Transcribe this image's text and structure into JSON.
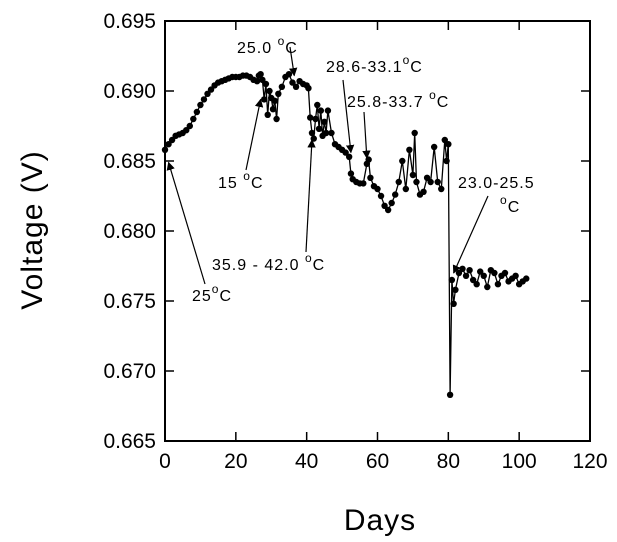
{
  "chart_data": {
    "type": "scatter",
    "title": "",
    "xlabel": "Days",
    "ylabel": "Voltage (V)",
    "xlim": [
      0,
      120
    ],
    "ylim": [
      0.665,
      0.695
    ],
    "x_ticks": [
      0,
      20,
      40,
      60,
      80,
      100,
      120
    ],
    "x_tick_labels": [
      "0",
      "20",
      "40",
      "60",
      "80",
      "100",
      "120"
    ],
    "y_ticks": [
      0.665,
      0.67,
      0.675,
      0.68,
      0.685,
      0.69,
      0.695
    ],
    "y_tick_labels": [
      "0.665",
      "0.670",
      "0.675",
      "0.680",
      "0.685",
      "0.690",
      "0.695"
    ],
    "grid": false,
    "connected": true,
    "marker": "filled-circle",
    "color": "#000000",
    "series": [
      {
        "x": [
          0,
          1,
          2,
          3,
          4,
          5,
          6,
          7,
          8,
          9,
          10,
          11,
          12,
          13,
          14,
          15,
          16,
          17,
          18,
          19,
          20,
          21,
          22,
          23,
          24,
          25,
          26,
          26.5,
          27,
          27.5,
          28,
          28.5,
          29,
          29.5,
          30,
          30.5,
          31,
          31.5,
          32,
          33,
          34,
          35,
          36,
          37,
          38,
          39,
          40,
          40.5,
          41,
          41.5,
          42,
          42.5,
          43,
          43.5,
          44,
          44.5,
          45,
          45.5,
          46,
          47,
          48,
          49,
          50,
          51,
          52,
          52.5,
          53,
          54,
          55,
          56,
          57,
          57.5,
          58,
          59,
          60,
          61,
          62,
          63,
          64,
          65,
          66,
          67,
          68,
          69,
          70,
          70.5,
          71,
          72,
          73,
          74,
          75,
          76,
          77,
          78,
          79,
          79.5,
          80,
          80.5,
          81,
          81.5,
          82,
          83,
          84,
          85,
          86,
          87,
          88,
          89,
          90,
          91,
          92,
          93,
          94,
          95,
          96,
          97,
          98,
          99,
          100,
          101,
          102
        ],
        "y": [
          0.6858,
          0.6862,
          0.6865,
          0.6868,
          0.6869,
          0.687,
          0.6872,
          0.6875,
          0.688,
          0.6885,
          0.689,
          0.6894,
          0.6898,
          0.6901,
          0.6904,
          0.6906,
          0.6907,
          0.6908,
          0.6909,
          0.691,
          0.691,
          0.691,
          0.6911,
          0.6911,
          0.691,
          0.6908,
          0.6907,
          0.6911,
          0.6912,
          0.6908,
          0.6894,
          0.6905,
          0.6883,
          0.69,
          0.6895,
          0.6887,
          0.6893,
          0.688,
          0.6898,
          0.6903,
          0.691,
          0.6912,
          0.6906,
          0.6903,
          0.6907,
          0.6905,
          0.6904,
          0.6902,
          0.6881,
          0.687,
          0.6866,
          0.688,
          0.689,
          0.6873,
          0.6886,
          0.6868,
          0.6878,
          0.687,
          0.6886,
          0.687,
          0.6862,
          0.686,
          0.6858,
          0.6856,
          0.6853,
          0.6841,
          0.6837,
          0.6835,
          0.6834,
          0.6834,
          0.6848,
          0.6851,
          0.6838,
          0.6832,
          0.683,
          0.6825,
          0.6818,
          0.6815,
          0.682,
          0.6826,
          0.6835,
          0.685,
          0.683,
          0.6858,
          0.684,
          0.687,
          0.6835,
          0.6826,
          0.6828,
          0.6838,
          0.6835,
          0.686,
          0.6835,
          0.683,
          0.6865,
          0.685,
          0.6862,
          0.6683,
          0.6765,
          0.6748,
          0.6758,
          0.677,
          0.6773,
          0.6768,
          0.6772,
          0.6765,
          0.6762,
          0.6771,
          0.6768,
          0.676,
          0.6772,
          0.677,
          0.6762,
          0.6768,
          0.677,
          0.6764,
          0.6766,
          0.6768,
          0.6762,
          0.6764,
          0.6766
        ]
      }
    ],
    "annotations": [
      {
        "id": "a25c",
        "text": "25",
        "sup": "o",
        "tail": "C",
        "x": 1,
        "y": 0.6849
      },
      {
        "id": "a15c",
        "text": "15 ",
        "sup": "o",
        "tail": "C",
        "x": 27,
        "y": 0.6894
      },
      {
        "id": "a250c",
        "text": "25.0 ",
        "sup": "o",
        "tail": "C",
        "x": 36.5,
        "y": 0.6911
      },
      {
        "id": "a359c",
        "text": "35.9 - 42.0 ",
        "sup": "o",
        "tail": "C",
        "x": 41.5,
        "y": 0.6865
      },
      {
        "id": "a286c",
        "text": "28.6-33.1",
        "sup": "o",
        "tail": "C",
        "x": 52.5,
        "y": 0.6856
      },
      {
        "id": "a258c",
        "text": "25.8-33.7 ",
        "sup": "o",
        "tail": "C",
        "x": 57,
        "y": 0.6852
      },
      {
        "id": "a230c",
        "text": "23.0-25.5",
        "sup": "",
        "tail": "",
        "x": 81.5,
        "y": 0.677
      },
      {
        "id": "a230c_unit",
        "text": "",
        "sup": "o",
        "tail": "C",
        "x": 81.5,
        "y": 0.677
      }
    ]
  }
}
